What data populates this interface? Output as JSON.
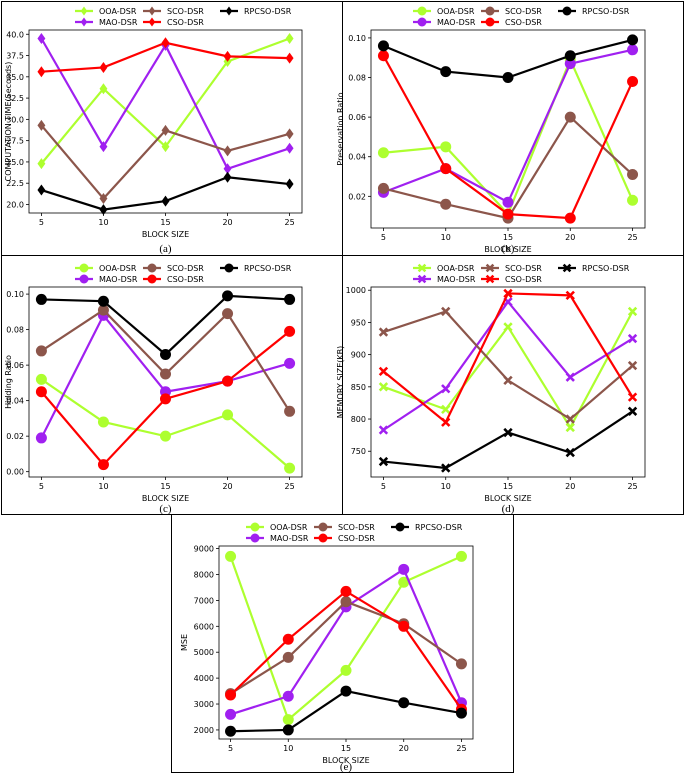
{
  "chart_data": [
    {
      "id": "a",
      "type": "line",
      "caption": "(a)",
      "xlabel": "BLOCK SIZE",
      "ylabel": "COMPUTATION TIME(Seconds)",
      "x": [
        5,
        10,
        15,
        20,
        25
      ],
      "xlim": [
        4,
        26
      ],
      "ylim": [
        19.0,
        40.5
      ],
      "yticks": [
        20.0,
        22.5,
        25.0,
        27.5,
        30.0,
        32.5,
        35.0,
        37.5,
        40.0
      ],
      "ytick_labels": [
        "20.0",
        "22.5",
        "25.0",
        "27.5",
        "30.0",
        "32.5",
        "35.0",
        "37.5",
        "40.0"
      ],
      "marker": "diamond",
      "legend_position": "top-center",
      "series": [
        {
          "name": "OOA-DSR",
          "color": "#adff2f",
          "values": [
            24.8,
            33.6,
            26.8,
            36.8,
            39.5
          ]
        },
        {
          "name": "MAO-DSR",
          "color": "#a020f0",
          "values": [
            39.5,
            26.8,
            38.7,
            24.2,
            26.6
          ]
        },
        {
          "name": "SCO-DSR",
          "color": "#8c564b",
          "values": [
            29.3,
            20.7,
            28.7,
            26.3,
            28.3
          ]
        },
        {
          "name": "CSO-DSR",
          "color": "#ff0000",
          "values": [
            35.6,
            36.1,
            39.0,
            37.4,
            37.2
          ]
        },
        {
          "name": "RPCSO-DSR",
          "color": "#000000",
          "values": [
            21.7,
            19.4,
            20.4,
            23.2,
            22.4
          ]
        }
      ]
    },
    {
      "id": "b",
      "type": "line",
      "caption": "(b)",
      "xlabel": "BLOCK SIZE",
      "ylabel": "Preservation Ratio",
      "x": [
        5,
        10,
        15,
        20,
        25
      ],
      "xlim": [
        4,
        26
      ],
      "ylim": [
        0.004,
        0.104
      ],
      "yticks": [
        0.02,
        0.04,
        0.06,
        0.08,
        0.1
      ],
      "ytick_labels": [
        "0.02",
        "0.04",
        "0.06",
        "0.08",
        "0.10"
      ],
      "marker": "circle",
      "legend_position": "top-center",
      "series": [
        {
          "name": "OOA-DSR",
          "color": "#adff2f",
          "values": [
            0.042,
            0.045,
            0.011,
            0.089,
            0.018
          ]
        },
        {
          "name": "MAO-DSR",
          "color": "#a020f0",
          "values": [
            0.022,
            0.034,
            0.017,
            0.087,
            0.094
          ]
        },
        {
          "name": "SCO-DSR",
          "color": "#8c564b",
          "values": [
            0.024,
            0.016,
            0.009,
            0.06,
            0.031
          ]
        },
        {
          "name": "CSO-DSR",
          "color": "#ff0000",
          "values": [
            0.091,
            0.034,
            0.011,
            0.009,
            0.078
          ]
        },
        {
          "name": "RPCSO-DSR",
          "color": "#000000",
          "values": [
            0.096,
            0.083,
            0.08,
            0.091,
            0.099
          ]
        }
      ]
    },
    {
      "id": "c",
      "type": "line",
      "caption": "(c)",
      "xlabel": "BLOCK SIZE",
      "ylabel": "Hidding Ratio",
      "x": [
        5,
        10,
        15,
        20,
        25
      ],
      "xlim": [
        4,
        26
      ],
      "ylim": [
        -0.003,
        0.104
      ],
      "yticks": [
        0.0,
        0.02,
        0.04,
        0.06,
        0.08,
        0.1
      ],
      "ytick_labels": [
        "0.00",
        "0.02",
        "0.04",
        "0.06",
        "0.08",
        "0.10"
      ],
      "marker": "circle",
      "legend_position": "top-center",
      "series": [
        {
          "name": "OOA-DSR",
          "color": "#adff2f",
          "values": [
            0.052,
            0.028,
            0.02,
            0.032,
            0.002
          ]
        },
        {
          "name": "MAO-DSR",
          "color": "#a020f0",
          "values": [
            0.019,
            0.088,
            0.045,
            0.051,
            0.061
          ]
        },
        {
          "name": "SCO-DSR",
          "color": "#8c564b",
          "values": [
            0.068,
            0.091,
            0.055,
            0.089,
            0.034
          ]
        },
        {
          "name": "CSO-DSR",
          "color": "#ff0000",
          "values": [
            0.045,
            0.004,
            0.041,
            0.051,
            0.079
          ]
        },
        {
          "name": "RPCSO-DSR",
          "color": "#000000",
          "values": [
            0.097,
            0.096,
            0.066,
            0.099,
            0.097
          ]
        }
      ]
    },
    {
      "id": "d",
      "type": "line",
      "caption": "(d)",
      "xlabel": "BLOCK SIZE",
      "ylabel": "MEMORY SIZE(KB)",
      "x": [
        5,
        10,
        15,
        20,
        25
      ],
      "xlim": [
        4,
        26
      ],
      "ylim": [
        710,
        1005
      ],
      "yticks": [
        750,
        800,
        850,
        900,
        950,
        1000
      ],
      "ytick_labels": [
        "750",
        "800",
        "850",
        "900",
        "950",
        "1000"
      ],
      "marker": "x",
      "legend_position": "top-center",
      "series": [
        {
          "name": "OOA-DSR",
          "color": "#adff2f",
          "values": [
            850,
            815,
            943,
            787,
            967
          ]
        },
        {
          "name": "MAO-DSR",
          "color": "#a020f0",
          "values": [
            783,
            847,
            982,
            865,
            925
          ]
        },
        {
          "name": "SCO-DSR",
          "color": "#8c564b",
          "values": [
            935,
            967,
            860,
            800,
            883
          ]
        },
        {
          "name": "CSO-DSR",
          "color": "#ff0000",
          "values": [
            874,
            795,
            995,
            992,
            834
          ]
        },
        {
          "name": "RPCSO-DSR",
          "color": "#000000",
          "values": [
            734,
            724,
            779,
            748,
            812
          ]
        }
      ]
    },
    {
      "id": "e",
      "type": "line",
      "caption": "(e)",
      "xlabel": "BLOCK SIZE",
      "ylabel": "MSE",
      "x": [
        5,
        10,
        15,
        20,
        25
      ],
      "xlim": [
        4,
        26
      ],
      "ylim": [
        1650,
        9100
      ],
      "yticks": [
        2000,
        3000,
        4000,
        5000,
        6000,
        7000,
        8000,
        9000
      ],
      "ytick_labels": [
        "2000",
        "3000",
        "4000",
        "5000",
        "6000",
        "7000",
        "8000",
        "9000"
      ],
      "marker": "circle",
      "legend_position": "top-center",
      "series": [
        {
          "name": "OOA-DSR",
          "color": "#adff2f",
          "values": [
            8700,
            2400,
            4300,
            7700,
            8700
          ]
        },
        {
          "name": "MAO-DSR",
          "color": "#a020f0",
          "values": [
            2600,
            3300,
            6750,
            8200,
            3050
          ]
        },
        {
          "name": "SCO-DSR",
          "color": "#8c564b",
          "values": [
            3400,
            4800,
            6950,
            6100,
            4550
          ]
        },
        {
          "name": "CSO-DSR",
          "color": "#ff0000",
          "values": [
            3350,
            5500,
            7350,
            6000,
            2800
          ]
        },
        {
          "name": "RPCSO-DSR",
          "color": "#000000",
          "values": [
            1950,
            2000,
            3500,
            3050,
            2650
          ]
        }
      ]
    }
  ]
}
